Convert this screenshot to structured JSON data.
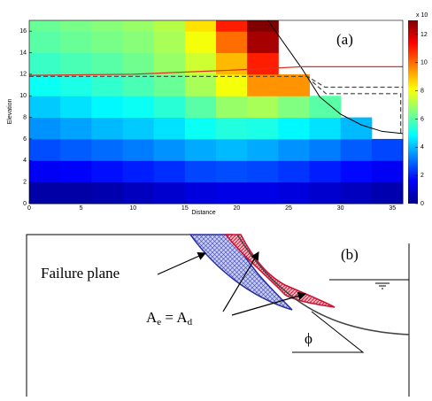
{
  "chart_data": {
    "type": "heatmap",
    "panel_label": "(a)",
    "xlabel": "Distance",
    "ylabel": "Elevation",
    "xlim": [
      0,
      36
    ],
    "xticks": [
      0,
      5,
      10,
      15,
      20,
      25,
      30,
      35
    ],
    "ylim": [
      0,
      17
    ],
    "yticks": [
      0,
      2,
      4,
      6,
      8,
      10,
      12,
      14,
      16
    ],
    "x_bins": [
      0,
      3,
      6,
      9,
      12,
      15,
      18,
      21,
      24,
      27,
      30,
      33,
      36
    ],
    "y_bins": [
      0,
      2,
      4,
      6,
      8,
      10,
      12,
      14,
      16,
      17
    ],
    "values": [
      [
        0.5,
        0.5,
        0.6,
        0.8,
        1,
        1.2,
        1.3,
        1.3,
        1.2,
        1,
        0.8,
        0.6
      ],
      [
        1.5,
        1.6,
        1.8,
        2,
        2.2,
        2.5,
        2.6,
        2.5,
        2.3,
        2,
        1.7,
        1.5
      ],
      [
        2.6,
        2.8,
        3,
        3.2,
        3.5,
        3.8,
        4,
        3.8,
        3.5,
        3.2,
        2.8,
        2.5
      ],
      [
        3.5,
        3.7,
        4,
        4.2,
        4.5,
        5,
        5.3,
        5.2,
        4.8,
        4.5,
        4,
        null
      ],
      [
        4.2,
        4.5,
        4.8,
        5,
        5.4,
        6,
        6.8,
        7,
        6.5,
        6,
        null,
        null
      ],
      [
        5,
        5.2,
        5.5,
        5.8,
        6.2,
        7,
        8,
        9.5,
        9.5,
        null,
        null,
        null
      ],
      [
        5.6,
        5.8,
        6,
        6.3,
        6.8,
        7.5,
        9,
        11,
        null,
        null,
        null,
        null
      ],
      [
        6,
        6.2,
        6.4,
        6.6,
        7,
        8,
        10,
        12.5,
        null,
        null,
        null,
        null
      ],
      [
        6.2,
        6.4,
        6.6,
        6.8,
        7.2,
        8.5,
        11,
        13,
        null,
        null,
        null,
        null
      ]
    ],
    "colorbar_label": "x 10",
    "clim": [
      0,
      13
    ],
    "colorbar_ticks": [
      0,
      2,
      4,
      6,
      8,
      10,
      12
    ],
    "series": [
      {
        "color": "#000000",
        "x": [
          23,
          26.3,
          28,
          30,
          32,
          34,
          36
        ],
        "y": [
          17,
          12.5,
          9.9,
          8.3,
          7.3,
          6.7,
          6.5
        ]
      },
      {
        "color": "#e03020",
        "x": [
          0,
          10,
          20,
          26.3,
          36
        ],
        "y": [
          11.9,
          12,
          12.4,
          12.7,
          12.7
        ]
      },
      {
        "color": "#444444",
        "x": [
          0,
          26.8,
          28.5,
          36
        ],
        "y": [
          11.8,
          11.8,
          10.8,
          10.8
        ]
      },
      {
        "color": "#444444",
        "x": [
          27.3,
          28.6,
          35.8,
          35.8
        ],
        "y": [
          11.3,
          10.2,
          10.2,
          6.5
        ]
      }
    ]
  },
  "diagram": {
    "panel_label": "(b)",
    "failure_label": "Failure plane",
    "phi": "ϕ",
    "equality": {
      "a1": "A",
      "s1": "e",
      "mid": " = A",
      "s2": "d"
    }
  }
}
